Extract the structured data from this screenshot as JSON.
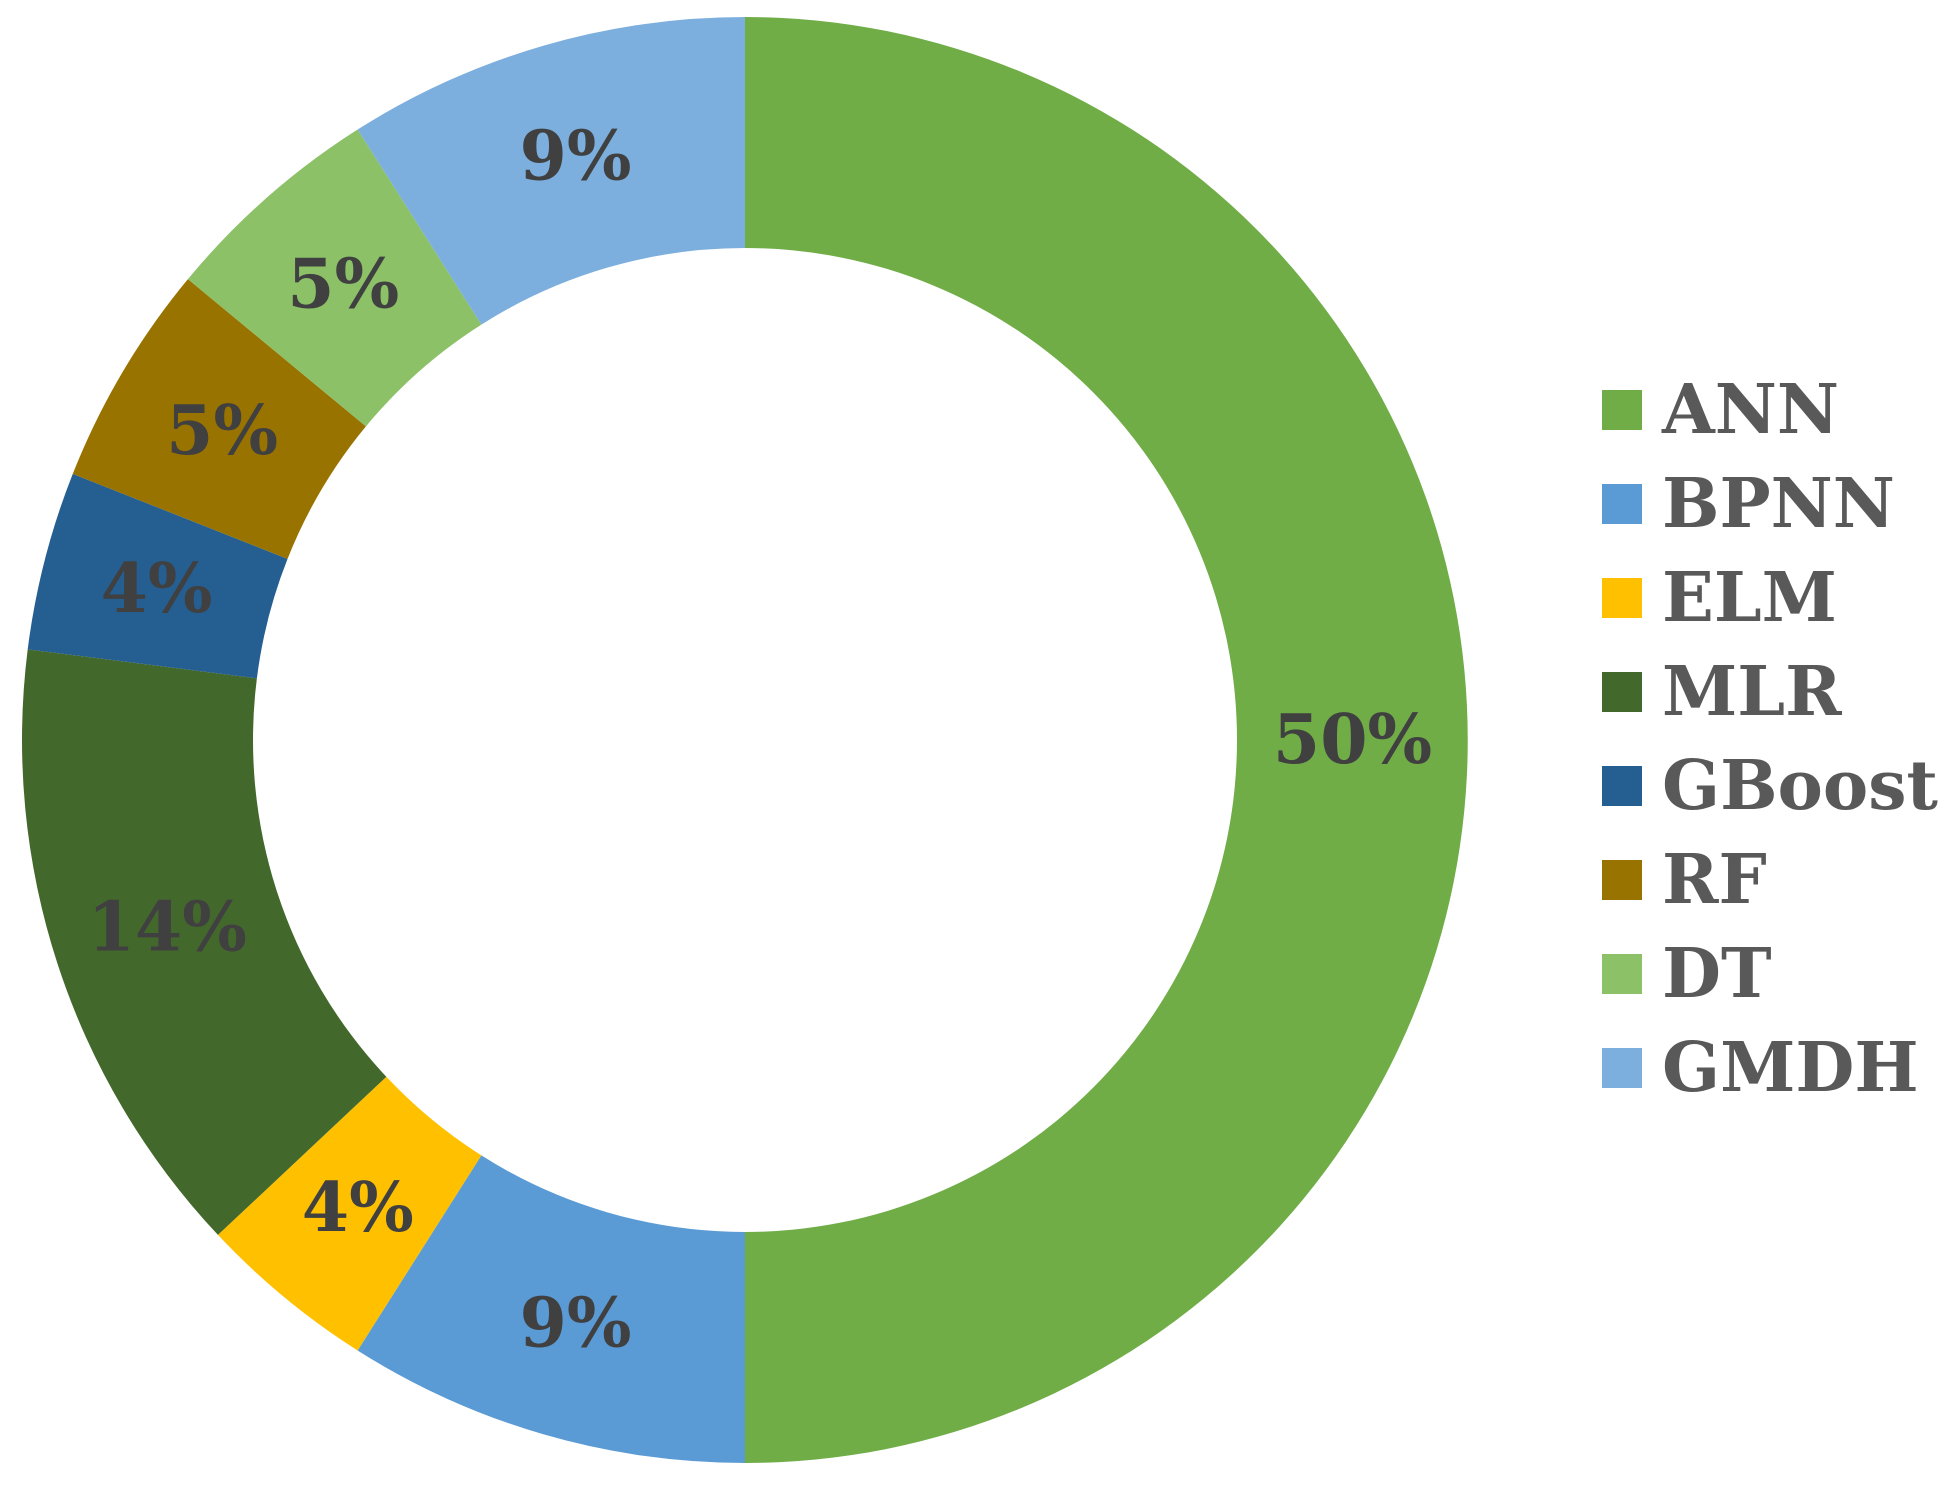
{
  "chart_data": {
    "type": "pie",
    "subtype": "donut",
    "title": "",
    "legend": {
      "placement": "right"
    },
    "slices": [
      {
        "label": "ANN",
        "value": 50,
        "display": "50%",
        "color": "#70AD47"
      },
      {
        "label": "BPNN",
        "value": 9,
        "display": "9%",
        "color": "#5B9BD5"
      },
      {
        "label": "ELM",
        "value": 4,
        "display": "4%",
        "color": "#FFC000"
      },
      {
        "label": "MLR",
        "value": 14,
        "display": "14%",
        "color": "#43682B"
      },
      {
        "label": "GBoost",
        "value": 4,
        "display": "4%",
        "color": "#255E91"
      },
      {
        "label": "RF",
        "value": 5,
        "display": "5%",
        "color": "#997300"
      },
      {
        "label": "DT",
        "value": 5,
        "display": "5%",
        "color": "#8CC168"
      },
      {
        "label": "GMDH",
        "value": 9,
        "display": "9%",
        "color": "#7CAFDD"
      }
    ],
    "label_color": "#404040",
    "legend_text_color": "#595959"
  }
}
